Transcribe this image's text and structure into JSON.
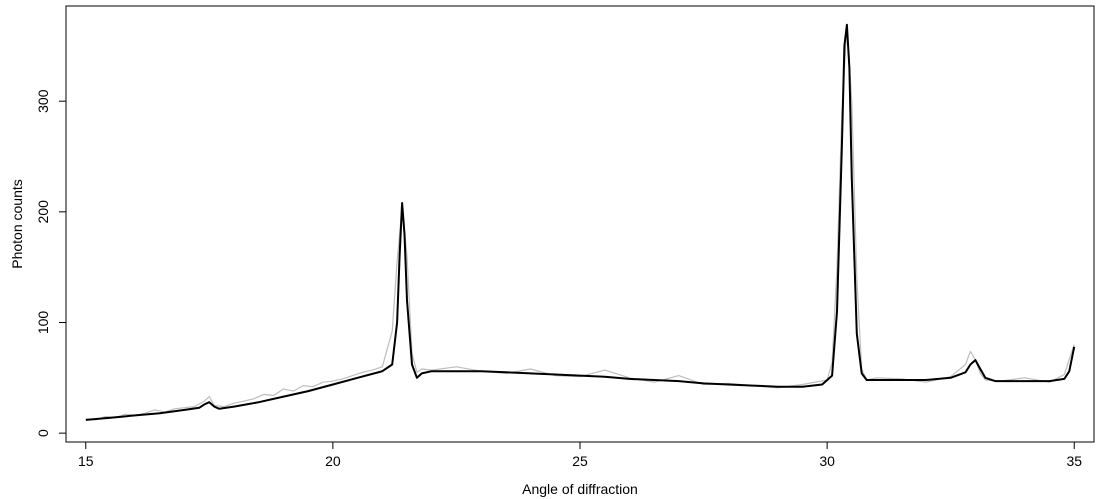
{
  "chart_data": {
    "type": "line",
    "title": "",
    "xlabel": "Angle of diffraction",
    "ylabel": "Photon counts",
    "xlim": [
      14.6,
      35.4
    ],
    "ylim": [
      -8,
      386
    ],
    "x_ticks": [
      15,
      20,
      25,
      30,
      35
    ],
    "y_ticks": [
      0,
      100,
      200,
      300
    ],
    "grid": false,
    "legend": "none",
    "colors": {
      "observed": "#bdbdbd",
      "fit": "#000000"
    },
    "series": [
      {
        "role": "observed",
        "x": [
          15.0,
          15.2,
          15.4,
          15.6,
          15.8,
          16.0,
          16.2,
          16.4,
          16.6,
          16.8,
          17.0,
          17.2,
          17.4,
          17.5,
          17.6,
          17.8,
          18.0,
          18.2,
          18.4,
          18.6,
          18.8,
          19.0,
          19.2,
          19.4,
          19.6,
          19.8,
          20.0,
          20.2,
          20.4,
          20.6,
          20.8,
          21.0,
          21.2,
          21.3,
          21.4,
          21.5,
          21.6,
          21.7,
          21.8,
          22.0,
          22.5,
          23.0,
          23.5,
          24.0,
          24.5,
          25.0,
          25.5,
          26.0,
          26.5,
          27.0,
          27.5,
          28.0,
          28.5,
          29.0,
          29.5,
          30.0,
          30.1,
          30.2,
          30.3,
          30.4,
          30.5,
          30.6,
          30.7,
          30.8,
          31.0,
          31.5,
          32.0,
          32.5,
          32.8,
          32.9,
          33.0,
          33.1,
          33.2,
          33.5,
          34.0,
          34.5,
          34.8,
          35.0
        ],
        "y": [
          13,
          12,
          15,
          14,
          17,
          16,
          18,
          21,
          19,
          22,
          23,
          24,
          29,
          33,
          25,
          24,
          27,
          29,
          31,
          35,
          34,
          40,
          38,
          43,
          42,
          46,
          47,
          49,
          52,
          55,
          57,
          60,
          92,
          155,
          205,
          160,
          72,
          55,
          58,
          57,
          60,
          56,
          54,
          58,
          52,
          51,
          57,
          50,
          46,
          52,
          44,
          45,
          43,
          41,
          44,
          48,
          64,
          150,
          290,
          368,
          300,
          140,
          58,
          48,
          50,
          49,
          46,
          51,
          62,
          74,
          66,
          54,
          48,
          47,
          50,
          46,
          53,
          80
        ]
      },
      {
        "role": "fit",
        "x": [
          15.0,
          15.5,
          16.0,
          16.5,
          17.0,
          17.3,
          17.4,
          17.5,
          17.6,
          17.7,
          18.0,
          18.5,
          19.0,
          19.5,
          20.0,
          20.5,
          21.0,
          21.2,
          21.3,
          21.35,
          21.4,
          21.45,
          21.5,
          21.6,
          21.7,
          21.8,
          22.0,
          22.5,
          23.0,
          23.5,
          24.0,
          24.5,
          25.0,
          25.5,
          26.0,
          26.5,
          27.0,
          27.5,
          28.0,
          28.5,
          29.0,
          29.5,
          29.9,
          30.1,
          30.2,
          30.3,
          30.35,
          30.4,
          30.45,
          30.5,
          30.6,
          30.7,
          30.8,
          31.0,
          31.5,
          32.0,
          32.5,
          32.8,
          32.9,
          33.0,
          33.1,
          33.2,
          33.4,
          34.0,
          34.5,
          34.8,
          34.9,
          35.0
        ],
        "y": [
          12,
          14,
          16,
          18,
          21,
          23,
          26,
          28,
          24,
          22,
          24,
          28,
          33,
          38,
          44,
          50,
          56,
          62,
          100,
          160,
          208,
          180,
          120,
          62,
          50,
          54,
          56,
          56,
          56,
          55,
          54,
          53,
          52,
          51,
          49,
          48,
          47,
          45,
          44,
          43,
          42,
          42,
          44,
          52,
          110,
          260,
          350,
          369,
          330,
          230,
          90,
          54,
          48,
          48,
          48,
          48,
          50,
          55,
          62,
          66,
          58,
          50,
          47,
          47,
          47,
          49,
          56,
          78
        ]
      }
    ]
  }
}
